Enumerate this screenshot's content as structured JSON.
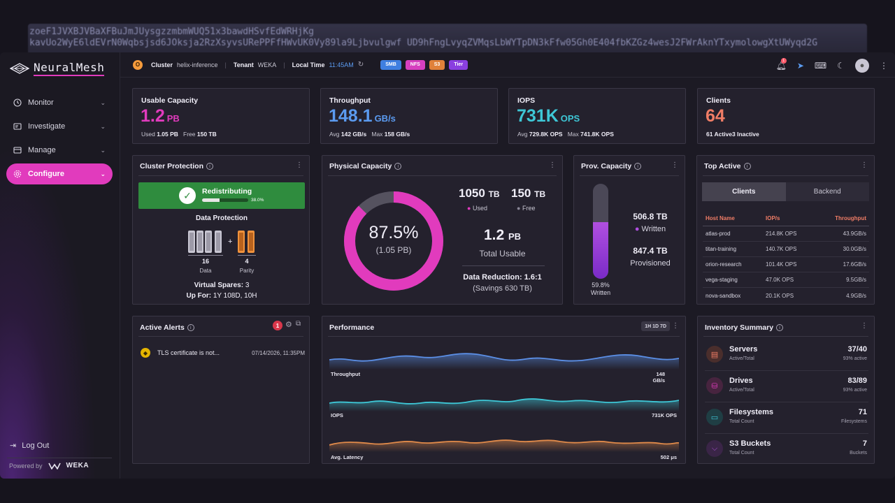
{
  "token_strip": {
    "line1": "zoeF1JVXBJVBaXFBuJmJUysgzzmbmWUQ51x3bawdHSvfEdWRHjKg",
    "line2": "kavUo2WyE6ldEVrN0Wqbsjsd6JOksja2RzXsyvsURePPFfHWvUK0Vy89la9Ljbvulgwf UD9hFngLvyqZVMqsLbWYTpDN3kFfw05Gh0E404fbKZGz4wesJ2FWrAknYTxymolowgXtUWyqd2G"
  },
  "brand": {
    "name": "NeuralMesh",
    "accent": "#e13bbd"
  },
  "sidebar": {
    "items": [
      {
        "label": "Monitor",
        "icon": "clock-icon"
      },
      {
        "label": "Investigate",
        "icon": "investigate-icon"
      },
      {
        "label": "Manage",
        "icon": "manage-icon"
      },
      {
        "label": "Configure",
        "icon": "gear-icon",
        "active": true
      }
    ],
    "logout": "Log Out",
    "powered_by": "Powered by",
    "powered_brand": "WEKA"
  },
  "topbar": {
    "org_initial": "O",
    "cluster_label": "Cluster",
    "cluster_value": "helix-inference",
    "tenant_label": "Tenant",
    "tenant_value": "WEKA",
    "time_label": "Local Time",
    "time_value": "11:45AM",
    "chips": [
      {
        "label": "SMB",
        "color": "#3f7fe0"
      },
      {
        "label": "NFS",
        "color": "#d63fbf"
      },
      {
        "label": "S3",
        "color": "#e0813a"
      },
      {
        "label": "Tier",
        "color": "#8a3fe0"
      }
    ],
    "notification_count": "1"
  },
  "kpis": {
    "capacity": {
      "title": "Usable Capacity",
      "value": "1.2",
      "unit": "PB",
      "color": "#e13bbd",
      "used_label": "Used",
      "used": "1.05 PB",
      "free_label": "Free",
      "free": "150 TB"
    },
    "throughput": {
      "title": "Throughput",
      "value": "148.1",
      "unit": "GB/s",
      "color": "#5b9bf0",
      "avg_label": "Avg",
      "avg": "142 GB/s",
      "max_label": "Max",
      "max": "158 GB/s"
    },
    "iops": {
      "title": "IOPS",
      "value": "731K",
      "unit": "OPS",
      "color": "#3ec7d6",
      "avg_label": "Avg",
      "avg": "729.8K OPS",
      "max_label": "Max",
      "max": "741.8K OPS"
    },
    "clients": {
      "title": "Clients",
      "value": "64",
      "color": "#f07d66",
      "active": "61 Active",
      "inactive": "3 Inactive"
    }
  },
  "protection": {
    "title": "Cluster Protection",
    "status": "Redistributing",
    "progress_pct": 38.0,
    "progress_text": "38.0%",
    "data_protection_label": "Data Protection",
    "data_count": "16",
    "data_label": "Data",
    "plus": "+",
    "parity_count": "4",
    "parity_label": "Parity",
    "virtual_spares_label": "Virtual Spares:",
    "virtual_spares": "3",
    "up_for_label": "Up For:",
    "up_for": "1Y 108D, 10H"
  },
  "physical": {
    "title": "Physical Capacity",
    "pct_text": "87.5%",
    "used_fraction": 0.875,
    "sub_text": "(1.05 PB)",
    "used_val": "1050",
    "used_unit": "TB",
    "used_label": "Used",
    "free_val": "150",
    "free_unit": "TB",
    "free_label": "Free",
    "total_val": "1.2",
    "total_unit": "PB",
    "total_label": "Total Usable",
    "reduction_label": "Data Reduction: 1.6:1",
    "savings": "(Savings 630 TB)"
  },
  "prov": {
    "title": "Prov. Capacity",
    "written_val": "506.8 TB",
    "written_label": "Written",
    "provisioned_val": "847.4 TB",
    "provisioned_label": "Provisioned",
    "pct_text": "59.8%",
    "pct_label": "Written",
    "fraction": 0.598
  },
  "top_active": {
    "title": "Top Active",
    "tabs": [
      "Clients",
      "Backend"
    ],
    "headers": [
      "Host Name",
      "IOP/s",
      "Throughput"
    ],
    "rows": [
      [
        "atlas-prod",
        "214.8K OPS",
        "43.9GB/s"
      ],
      [
        "titan-training",
        "140.7K OPS",
        "30.0GB/s"
      ],
      [
        "orion-research",
        "101.4K OPS",
        "17.6GB/s"
      ],
      [
        "vega-staging",
        "47.0K OPS",
        "9.5GB/s"
      ],
      [
        "nova-sandbox",
        "20.1K OPS",
        "4.9GB/s"
      ]
    ]
  },
  "alerts": {
    "title": "Active Alerts",
    "count": "1",
    "items": [
      {
        "text": "TLS certificate is not...",
        "time": "07/14/2026, 11:35PM"
      }
    ]
  },
  "performance": {
    "title": "Performance",
    "range": "1H 1D 7D",
    "series": [
      {
        "label": "Throughput",
        "value_line1": "148",
        "value_line2": "GB/s",
        "color": "#5b8fe6"
      },
      {
        "label": "IOPS",
        "value_line1": "731K OPS",
        "value_line2": "",
        "color": "#3ec7d6"
      },
      {
        "label": "Avg. Latency",
        "value_line1": "502 μs",
        "value_line2": "",
        "color": "#e08a4a"
      }
    ]
  },
  "inventory": {
    "title": "Inventory Summary",
    "rows": [
      {
        "name": "Servers",
        "sub": "Active/Total",
        "value": "37/40",
        "value_sub": "93% active",
        "icon": "server-icon",
        "color": "#f07d66"
      },
      {
        "name": "Drives",
        "sub": "Active/Total",
        "value": "83/89",
        "value_sub": "93% active",
        "icon": "drive-icon",
        "color": "#e13bbd"
      },
      {
        "name": "Filesystems",
        "sub": "Total Count",
        "value": "71",
        "value_sub": "Filesystems",
        "icon": "folder-icon",
        "color": "#3ec7d6"
      },
      {
        "name": "S3 Buckets",
        "sub": "Total Count",
        "value": "7",
        "value_sub": "Buckets",
        "icon": "bucket-icon",
        "color": "#b24fe0"
      }
    ]
  }
}
